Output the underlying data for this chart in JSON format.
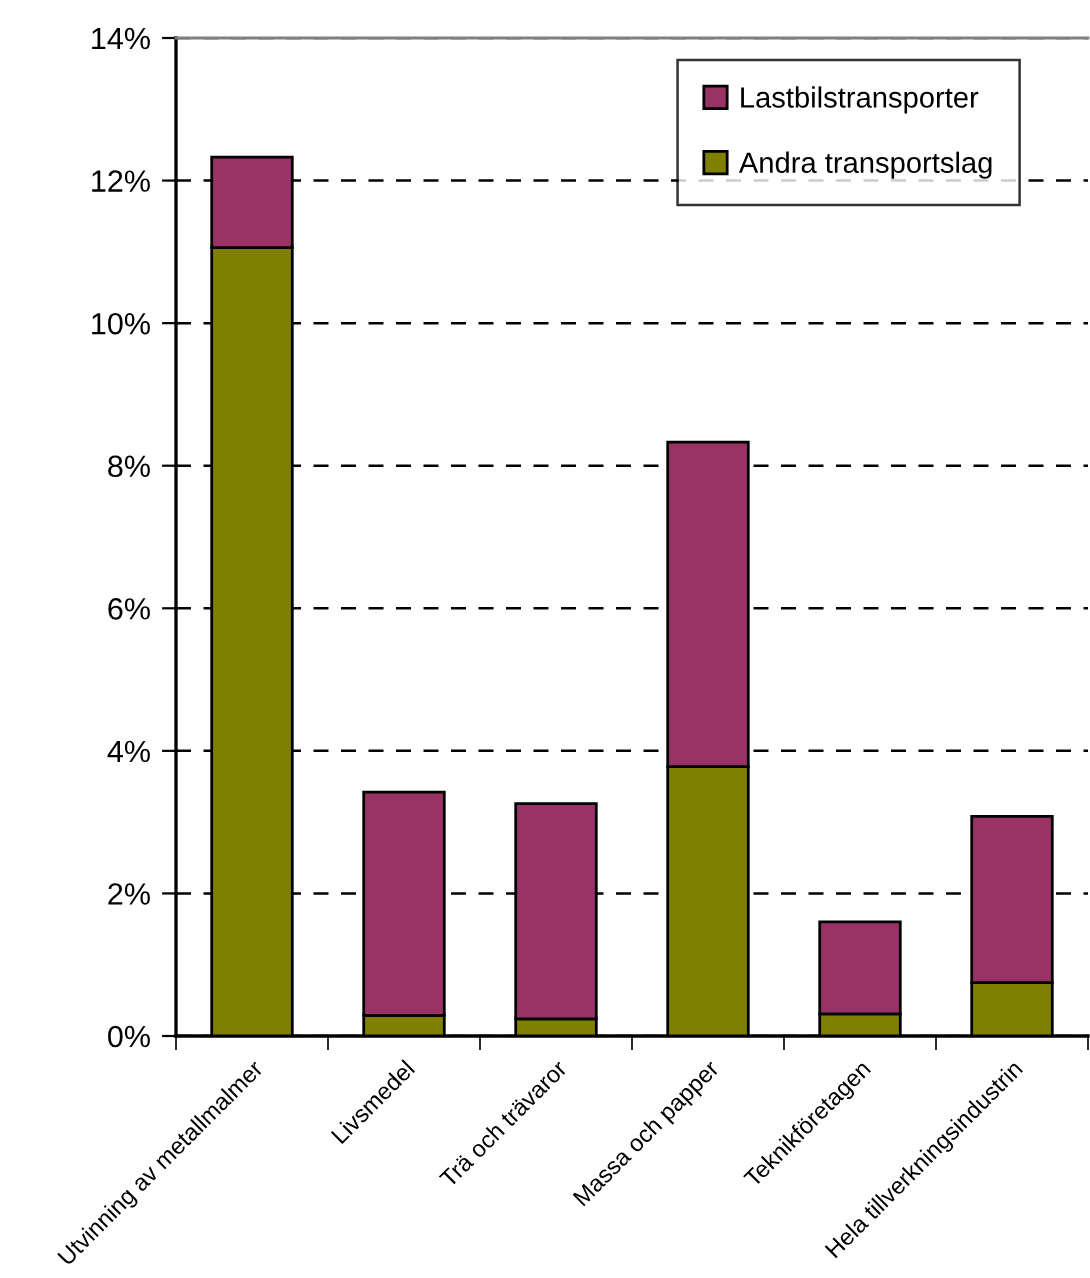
{
  "chart_data": {
    "type": "bar",
    "stacked": true,
    "categories": [
      "Utvinning av metallmalmer",
      "Livsmedel",
      "Trä och trävaror",
      "Massa och papper",
      "Teknikföretagen",
      "Hela tillverkningsindustrin"
    ],
    "series": [
      {
        "name": "Andra transportslag",
        "color": "#808000",
        "values": [
          11.06,
          0.29,
          0.24,
          3.78,
          0.31,
          0.75
        ]
      },
      {
        "name": "Lastbilstransporter",
        "color": "#993366",
        "values": [
          1.27,
          3.13,
          3.02,
          4.55,
          1.29,
          2.33
        ]
      }
    ],
    "ylim": [
      0,
      14
    ],
    "yticks": [
      {
        "value": 0,
        "label": "0%"
      },
      {
        "value": 2,
        "label": "2%"
      },
      {
        "value": 4,
        "label": "4%"
      },
      {
        "value": 6,
        "label": "6%"
      },
      {
        "value": 8,
        "label": "8%"
      },
      {
        "value": 10,
        "label": "10%"
      },
      {
        "value": 12,
        "label": "12%"
      },
      {
        "value": 14,
        "label": "14%"
      }
    ],
    "grid": "y",
    "legend": "top right"
  }
}
